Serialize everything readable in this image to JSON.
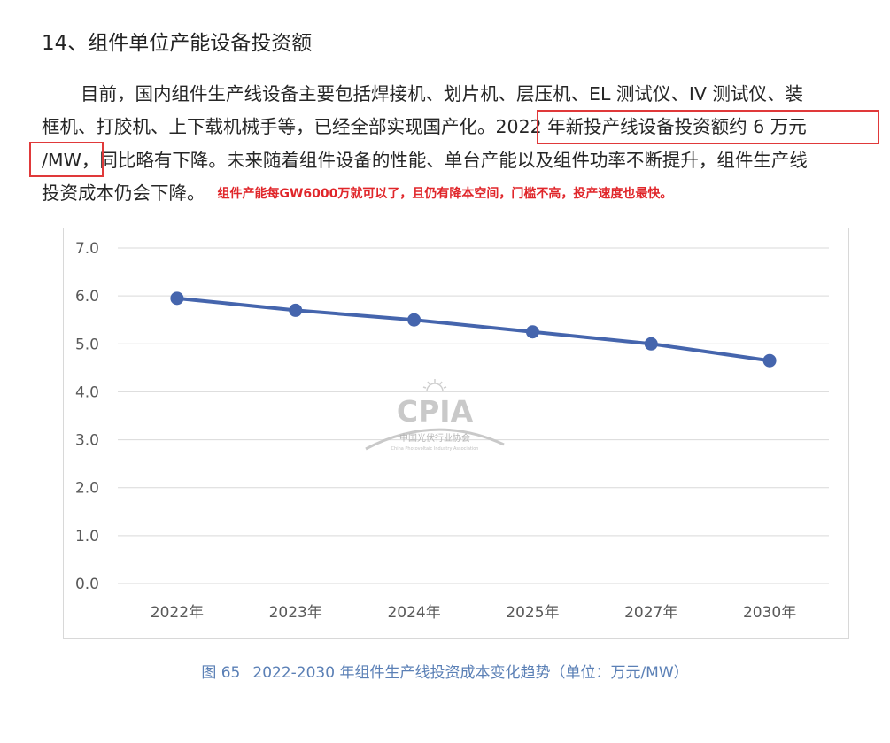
{
  "heading": "14、组件单位产能设备投资额",
  "paragraph": {
    "line1": "目前，国内组件生产线设备主要包括焊接机、划片机、层压机、EL 测试仪、IV 测试仪、装",
    "line2_a": "框机、打胶机、上下载机械手等，已经全部实现国产化。",
    "line2_highlight": "2022 年新投产线设备投资额约 6 万元",
    "line3_highlight": "/MW",
    "line3_b": "，同比略有下降。未来随着组件设备的性能、单台产能以及组件功率不断提升，组件生产线",
    "line4": "投资成本仍会下降。",
    "annotation": "组件产能每GW6000万就可以了，且仍有降本空间，门槛不高，投产速度也最快。"
  },
  "watermark": {
    "logo_text": "CPIA",
    "org_cn": "中国光伏行业协会",
    "org_en": "China Photovoltaic Industry Association"
  },
  "chart_data": {
    "type": "line",
    "categories": [
      "2022年",
      "2023年",
      "2024年",
      "2025年",
      "2027年",
      "2030年"
    ],
    "series": [
      {
        "values": [
          5.95,
          5.7,
          5.5,
          5.25,
          5.0,
          4.65
        ]
      }
    ],
    "yticks": [
      "0.0",
      "1.0",
      "2.0",
      "3.0",
      "4.0",
      "5.0",
      "6.0",
      "7.0"
    ],
    "ylim": [
      0,
      7
    ],
    "grid": true,
    "line_color": "#4565ad",
    "grid_color": "#d9d9d9"
  },
  "caption": {
    "fig_no": "图 65",
    "text": "2022-2030 年组件生产线投资成本变化趋势（单位：万元/MW）"
  }
}
